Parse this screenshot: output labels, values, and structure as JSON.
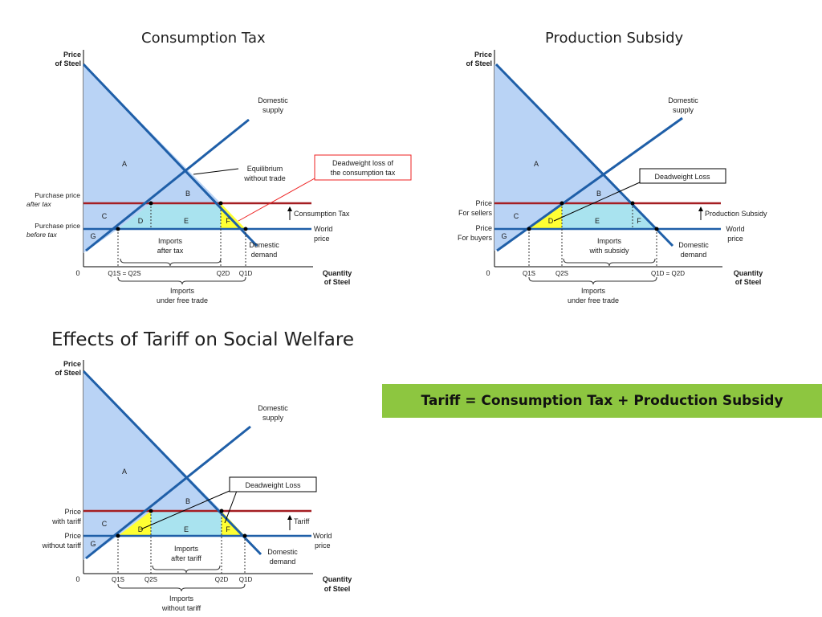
{
  "chart_data": [
    {
      "type": "diagram",
      "title": "Consumption Tax",
      "ylabel_lines": [
        "Price",
        "of Steel"
      ],
      "xlabel_lines": [
        "Quantity",
        "of Steel"
      ],
      "origin": "0",
      "curves": [
        {
          "name": "Domestic supply",
          "label_lines": [
            "Domestic",
            "supply"
          ]
        },
        {
          "name": "Domestic demand",
          "label_lines": [
            "Domestic",
            "demand"
          ]
        }
      ],
      "prices": [
        {
          "label_lines": [
            "Purchase price",
            "after tax"
          ]
        },
        {
          "label_lines": [
            "Purchase price",
            "before tax"
          ],
          "line_label_lines": [
            "World",
            "price"
          ]
        }
      ],
      "areas": [
        "A",
        "B",
        "C",
        "D",
        "E",
        "F",
        "G"
      ],
      "x_ticks": [
        "Q1S = Q2S",
        "Q2D",
        "Q1D"
      ],
      "braces": [
        {
          "label_lines": [
            "Imports",
            "after tax"
          ]
        },
        {
          "label_lines": [
            "Imports",
            "under free trade"
          ]
        }
      ],
      "annotations": [
        {
          "text_lines": [
            "Equilibrium",
            "without trade"
          ]
        },
        {
          "text_lines": [
            "Deadweight loss of",
            "the consumption tax"
          ]
        },
        {
          "text": "Consumption Tax"
        }
      ]
    },
    {
      "type": "diagram",
      "title": "Production Subsidy",
      "ylabel_lines": [
        "Price",
        "of Steel"
      ],
      "xlabel_lines": [
        "Quantity",
        "of Steel"
      ],
      "origin": "0",
      "curves": [
        {
          "name": "Domestic supply",
          "label_lines": [
            "Domestic",
            "supply"
          ]
        },
        {
          "name": "Domestic demand",
          "label_lines": [
            "Domestic",
            "demand"
          ]
        }
      ],
      "prices": [
        {
          "label_lines": [
            "Price",
            "For sellers"
          ]
        },
        {
          "label_lines": [
            "Price",
            "For buyers"
          ],
          "line_label_lines": [
            "World",
            "price"
          ]
        }
      ],
      "areas": [
        "A",
        "B",
        "C",
        "D",
        "E",
        "F",
        "G"
      ],
      "x_ticks": [
        "Q1S",
        "Q2S",
        "Q1D = Q2D"
      ],
      "braces": [
        {
          "label_lines": [
            "Imports",
            "with subsidy"
          ]
        },
        {
          "label_lines": [
            "Imports",
            "under free trade"
          ]
        }
      ],
      "annotations": [
        {
          "text": "Deadweight Loss"
        },
        {
          "text": "Production Subsidy"
        }
      ]
    },
    {
      "type": "diagram",
      "title": "Effects of Tariff on Social Welfare",
      "ylabel_lines": [
        "Price",
        "of Steel"
      ],
      "xlabel_lines": [
        "Quantity",
        "of Steel"
      ],
      "origin": "0",
      "curves": [
        {
          "name": "Domestic supply",
          "label_lines": [
            "Domestic",
            "supply"
          ]
        },
        {
          "name": "Domestic demand",
          "label_lines": [
            "Domestic",
            "demand"
          ]
        }
      ],
      "prices": [
        {
          "label_lines": [
            "Price",
            "with tariff"
          ]
        },
        {
          "label_lines": [
            "Price",
            "without tariff"
          ],
          "line_label_lines": [
            "World",
            "price"
          ]
        }
      ],
      "areas": [
        "A",
        "B",
        "C",
        "D",
        "E",
        "F",
        "G"
      ],
      "x_ticks": [
        "Q1S",
        "Q2S",
        "Q2D",
        "Q1D"
      ],
      "braces": [
        {
          "label_lines": [
            "Imports",
            "after tariff"
          ]
        },
        {
          "label_lines": [
            "Imports",
            "without tariff"
          ]
        }
      ],
      "annotations": [
        {
          "text": "Deadweight Loss"
        },
        {
          "text": "Tariff"
        }
      ]
    }
  ],
  "banner": {
    "text": "Tariff = Consumption Tax + Production Subsidy"
  }
}
